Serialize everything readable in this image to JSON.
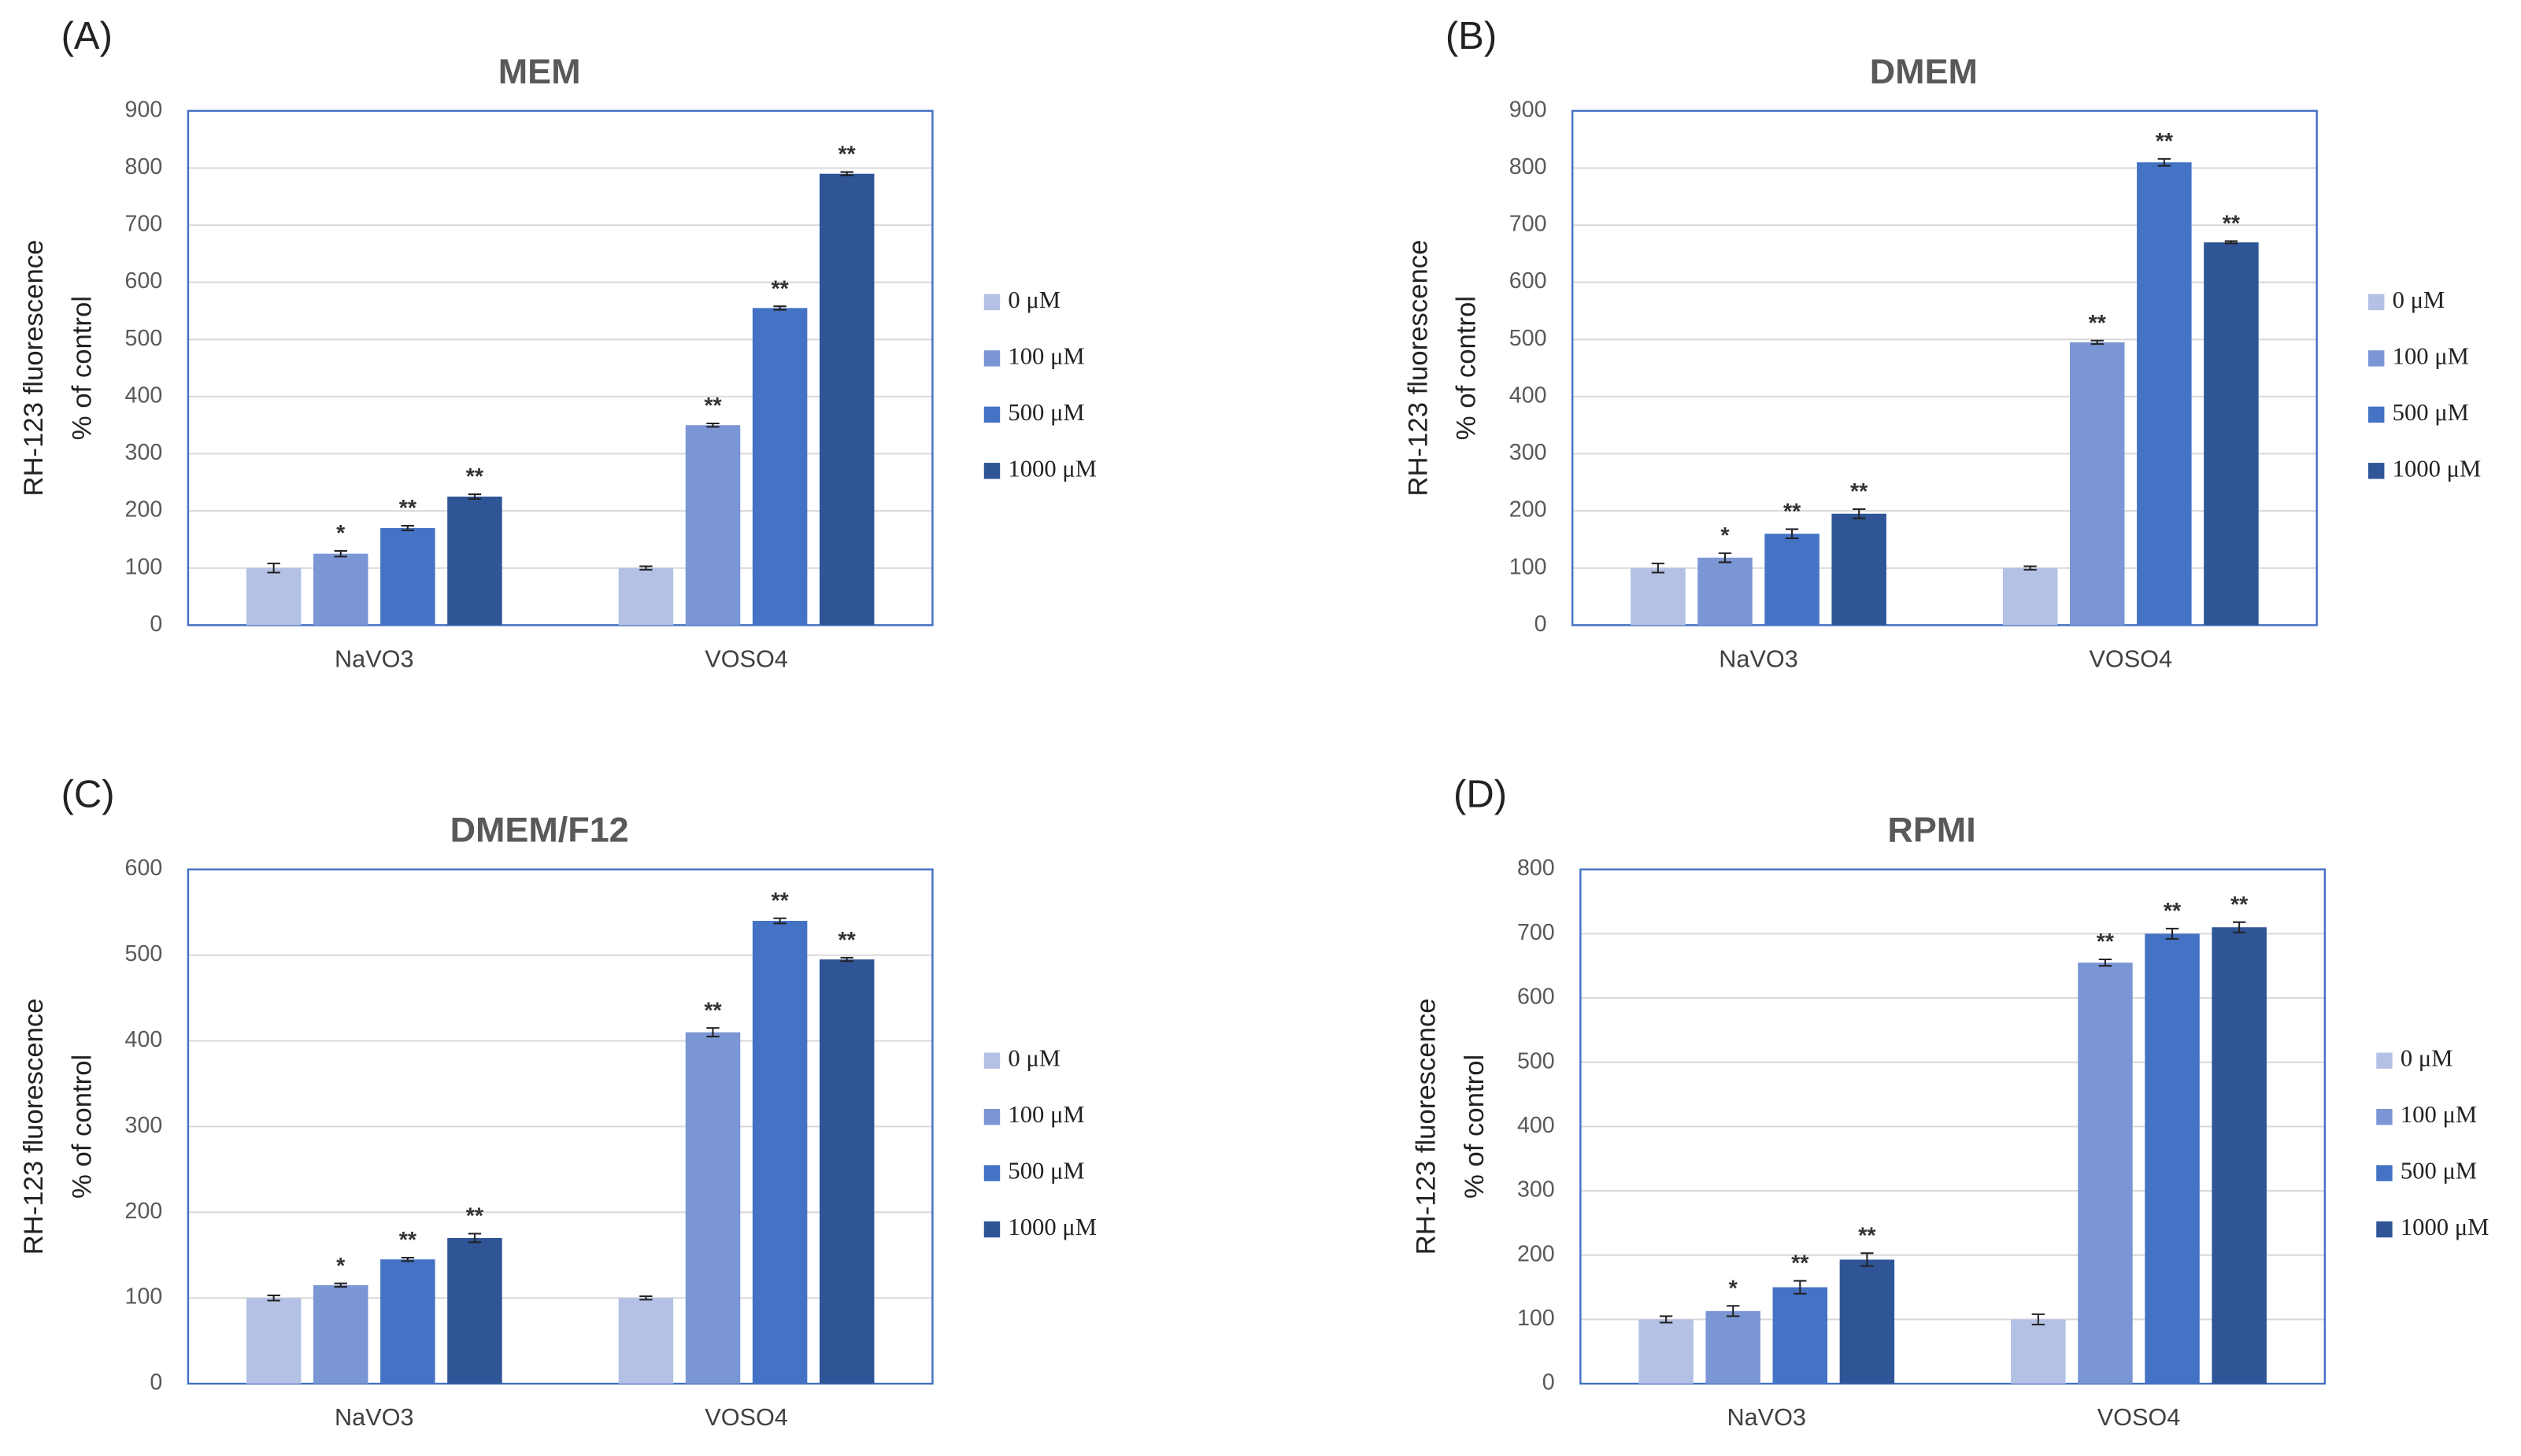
{
  "chart_data": [
    {
      "type": "bar",
      "panel_label": "(A)",
      "title": "MEM",
      "y_label": [
        "RH-123 fluorescence",
        "% of control"
      ],
      "categories": [
        "NaVO3",
        "VOSO4"
      ],
      "ylim": [
        0,
        900
      ],
      "yticks": [
        0,
        100,
        200,
        300,
        400,
        500,
        600,
        700,
        800,
        900
      ],
      "grid": true,
      "legend": "right",
      "series": [
        {
          "name": "0 μM",
          "color": "#b4c0e4",
          "values": [
            100,
            100
          ],
          "errors": [
            8,
            3
          ]
        },
        {
          "name": "100 μM",
          "color": "#7b96d4",
          "values": [
            125,
            350
          ],
          "errors": [
            5,
            3
          ],
          "markers": [
            "*",
            "**"
          ]
        },
        {
          "name": "500 μM",
          "color": "#4472c4",
          "values": [
            170,
            555
          ],
          "errors": [
            4,
            3
          ],
          "markers": [
            "**",
            "**"
          ]
        },
        {
          "name": "1000 μM",
          "color": "#2f5597",
          "values": [
            225,
            790
          ],
          "errors": [
            4,
            3
          ],
          "markers": [
            "**",
            "**"
          ]
        }
      ]
    },
    {
      "type": "bar",
      "panel_label": "(B)",
      "title": "DMEM",
      "y_label": [
        "RH-123 fluorescence",
        "% of control"
      ],
      "categories": [
        "NaVO3",
        "VOSO4"
      ],
      "ylim": [
        0,
        900
      ],
      "yticks": [
        0,
        100,
        200,
        300,
        400,
        500,
        600,
        700,
        800,
        900
      ],
      "grid": true,
      "legend": "right",
      "series": [
        {
          "name": "0 μM",
          "color": "#b4c0e4",
          "values": [
            100,
            100
          ],
          "errors": [
            8,
            3
          ]
        },
        {
          "name": "100 μM",
          "color": "#7b96d4",
          "values": [
            118,
            495
          ],
          "errors": [
            8,
            3
          ],
          "markers": [
            "*",
            "**"
          ]
        },
        {
          "name": "500 μM",
          "color": "#4472c4",
          "values": [
            160,
            810
          ],
          "errors": [
            8,
            6
          ],
          "markers": [
            "**",
            "**"
          ]
        },
        {
          "name": "1000 μM",
          "color": "#2f5597",
          "values": [
            195,
            670
          ],
          "errors": [
            8,
            2
          ],
          "markers": [
            "**",
            "**"
          ]
        }
      ]
    },
    {
      "type": "bar",
      "panel_label": "(C)",
      "title": "DMEM/F12",
      "y_label": [
        "RH-123 fluorescence",
        "% of control"
      ],
      "categories": [
        "NaVO3",
        "VOSO4"
      ],
      "ylim": [
        0,
        600
      ],
      "yticks": [
        0,
        100,
        200,
        300,
        400,
        500,
        600
      ],
      "grid": true,
      "legend": "right",
      "series": [
        {
          "name": "0 μM",
          "color": "#b4c0e4",
          "values": [
            100,
            100
          ],
          "errors": [
            3,
            2
          ]
        },
        {
          "name": "100 μM",
          "color": "#7b96d4",
          "values": [
            115,
            410
          ],
          "errors": [
            2,
            5
          ],
          "markers": [
            "*",
            "**"
          ]
        },
        {
          "name": "500 μM",
          "color": "#4472c4",
          "values": [
            145,
            540
          ],
          "errors": [
            2,
            3
          ],
          "markers": [
            "**",
            "**"
          ]
        },
        {
          "name": "1000 μM",
          "color": "#2f5597",
          "values": [
            170,
            495
          ],
          "errors": [
            5,
            2
          ],
          "markers": [
            "**",
            "**"
          ]
        }
      ]
    },
    {
      "type": "bar",
      "panel_label": "(D)",
      "title": "RPMI",
      "y_label": [
        "RH-123 fluorescence",
        "% of control"
      ],
      "categories": [
        "NaVO3",
        "VOSO4"
      ],
      "ylim": [
        0,
        800
      ],
      "yticks": [
        0,
        100,
        200,
        300,
        400,
        500,
        600,
        700,
        800
      ],
      "grid": true,
      "legend": "right",
      "series": [
        {
          "name": "0 μM",
          "color": "#b4c0e4",
          "values": [
            100,
            100
          ],
          "errors": [
            5,
            8
          ]
        },
        {
          "name": "100 μM",
          "color": "#7b96d4",
          "values": [
            113,
            655
          ],
          "errors": [
            8,
            5
          ],
          "markers": [
            "*",
            "**"
          ]
        },
        {
          "name": "500 μM",
          "color": "#4472c4",
          "values": [
            150,
            700
          ],
          "errors": [
            10,
            8
          ],
          "markers": [
            "**",
            "**"
          ]
        },
        {
          "name": "1000 μM",
          "color": "#2f5597",
          "values": [
            193,
            710
          ],
          "errors": [
            10,
            8
          ],
          "markers": [
            "**",
            "**"
          ]
        }
      ]
    }
  ]
}
